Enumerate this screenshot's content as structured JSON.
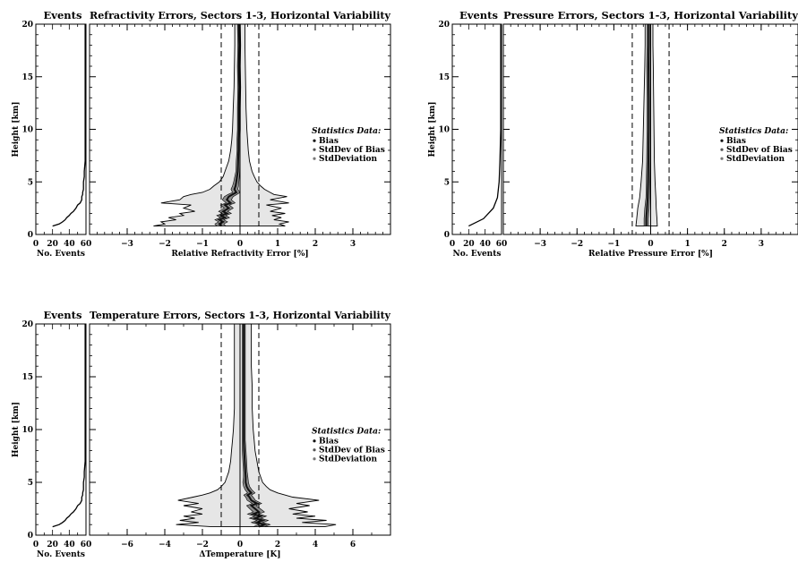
{
  "chart_data": [
    {
      "id": "refractivity",
      "type": "area",
      "title": "Refractivity Errors, Sectors 1-3, Horizontal Variability",
      "events_title": "Events",
      "ylabel": "Height [km]",
      "xlabel": "Relative Refractivity Error [%]",
      "events_xlabel": "No. Events",
      "xlim": [
        -4,
        4
      ],
      "ylim": [
        0,
        20
      ],
      "events_xlim": [
        0,
        60
      ],
      "xticks": [
        -3,
        -2,
        -1,
        0,
        1,
        2,
        3
      ],
      "yticks": [
        0,
        5,
        10,
        15,
        20
      ],
      "events_ticks": [
        0,
        20,
        40,
        60
      ],
      "dashed_lines_x": [
        -0.5,
        0.5
      ],
      "legend": {
        "title": "Statistics Data:",
        "items": [
          "Bias",
          "StdDev of Bias",
          "StdDeviation"
        ],
        "placement": "right"
      },
      "height": [
        0.8,
        1.0,
        1.2,
        1.4,
        1.6,
        1.8,
        2.0,
        2.2,
        2.5,
        2.8,
        3.0,
        3.3,
        3.6,
        3.8,
        4.0,
        4.3,
        4.6,
        5.0,
        5.5,
        6.0,
        7.0,
        8.0,
        9.0,
        10.0,
        12.0,
        14.0,
        16.0,
        18.0,
        20.0
      ],
      "bias": [
        -0.5,
        -0.55,
        -0.45,
        -0.55,
        -0.4,
        -0.5,
        -0.35,
        -0.45,
        -0.3,
        -0.4,
        -0.25,
        -0.35,
        -0.3,
        -0.2,
        -0.1,
        -0.15,
        -0.12,
        -0.1,
        -0.08,
        -0.06,
        -0.05,
        -0.04,
        -0.04,
        -0.03,
        -0.03,
        -0.02,
        -0.03,
        -0.02,
        -0.03
      ],
      "stddev_of_bias": [
        0.12,
        0.12,
        0.12,
        0.12,
        0.12,
        0.12,
        0.12,
        0.12,
        0.12,
        0.12,
        0.12,
        0.12,
        0.12,
        0.12,
        0.1,
        0.09,
        0.08,
        0.07,
        0.06,
        0.05,
        0.05,
        0.04,
        0.04,
        0.04,
        0.04,
        0.04,
        0.04,
        0.04,
        0.04
      ],
      "stddev_left": [
        -2.3,
        -2.0,
        -2.1,
        -1.7,
        -1.9,
        -1.5,
        -1.6,
        -1.2,
        -1.5,
        -1.3,
        -2.1,
        -1.6,
        -1.5,
        -1.3,
        -1.0,
        -0.8,
        -0.7,
        -0.55,
        -0.45,
        -0.4,
        -0.3,
        -0.25,
        -0.22,
        -0.2,
        -0.18,
        -0.16,
        -0.15,
        -0.14,
        -0.14
      ],
      "stddev_right": [
        1.2,
        1.05,
        1.3,
        0.9,
        1.1,
        0.85,
        1.2,
        0.8,
        1.1,
        0.7,
        1.3,
        0.8,
        1.25,
        0.9,
        0.8,
        0.65,
        0.55,
        0.45,
        0.38,
        0.32,
        0.25,
        0.22,
        0.2,
        0.18,
        0.16,
        0.15,
        0.14,
        0.13,
        0.13
      ],
      "events": [
        20,
        28,
        32,
        35,
        37,
        40,
        42,
        45,
        48,
        50,
        53,
        55,
        55,
        56,
        56,
        57,
        57,
        57,
        58,
        58,
        59,
        59,
        59,
        59,
        59,
        59,
        59,
        59,
        59
      ]
    },
    {
      "id": "pressure",
      "type": "area",
      "title": "Pressure Errors, Sectors 1-3, Horizontal Variability",
      "events_title": "Events",
      "ylabel": "Height [km]",
      "xlabel": "Relative Pressure Error [%]",
      "events_xlabel": "No. Events",
      "xlim": [
        -4,
        4
      ],
      "ylim": [
        0,
        20
      ],
      "events_xlim": [
        0,
        60
      ],
      "xticks": [
        -3,
        -2,
        -1,
        0,
        1,
        2,
        3
      ],
      "yticks": [
        0,
        5,
        10,
        15,
        20
      ],
      "events_ticks": [
        0,
        20,
        40,
        60
      ],
      "dashed_lines_x": [
        -0.5,
        0.5
      ],
      "legend": {
        "title": "Statistics Data:",
        "items": [
          "Bias",
          "StdDev of Bias",
          "StdDeviation"
        ],
        "placement": "right"
      },
      "height": [
        0.8,
        1.5,
        2.5,
        3.5,
        5.0,
        7.0,
        10.0,
        13.0,
        16.0,
        18.0,
        20.0
      ],
      "bias": [
        -0.12,
        -0.12,
        -0.1,
        -0.08,
        -0.07,
        -0.06,
        -0.05,
        -0.05,
        -0.06,
        -0.05,
        -0.05
      ],
      "stddev_of_bias": [
        0.06,
        0.06,
        0.06,
        0.05,
        0.05,
        0.05,
        0.05,
        0.05,
        0.05,
        0.05,
        0.05
      ],
      "stddev_left": [
        -0.4,
        -0.38,
        -0.35,
        -0.3,
        -0.26,
        -0.22,
        -0.2,
        -0.18,
        -0.16,
        -0.15,
        -0.15
      ],
      "stddev_right": [
        0.18,
        0.17,
        0.15,
        0.14,
        0.12,
        0.1,
        0.09,
        0.08,
        0.07,
        0.06,
        0.06
      ],
      "events": [
        20,
        38,
        50,
        55,
        57,
        58,
        59,
        59,
        59,
        59,
        59
      ]
    },
    {
      "id": "temperature",
      "type": "area",
      "title": "Temperature Errors, Sectors 1-3, Horizontal Variability",
      "events_title": "Events",
      "ylabel": "Height [km]",
      "xlabel": "ΔTemperature [K]",
      "events_xlabel": "No. Events",
      "xlim": [
        -8,
        8
      ],
      "ylim": [
        0,
        20
      ],
      "events_xlim": [
        0,
        60
      ],
      "xticks": [
        -6,
        -4,
        -2,
        0,
        2,
        4,
        6
      ],
      "yticks": [
        0,
        5,
        10,
        15,
        20
      ],
      "events_ticks": [
        0,
        20,
        40,
        60
      ],
      "dashed_lines_x": [
        -1,
        1
      ],
      "legend": {
        "title": "Statistics Data:",
        "items": [
          "Bias",
          "StdDev of Bias",
          "StdDeviation"
        ],
        "placement": "right"
      },
      "height": [
        0.8,
        1.0,
        1.2,
        1.4,
        1.6,
        1.8,
        2.0,
        2.2,
        2.5,
        2.8,
        3.0,
        3.3,
        3.6,
        3.8,
        4.0,
        4.3,
        4.6,
        5.0,
        5.5,
        6.0,
        7.0,
        8.0,
        9.0,
        10.0,
        12.0,
        14.0,
        16.0,
        18.0,
        20.0
      ],
      "bias": [
        1.0,
        1.3,
        0.9,
        1.2,
        0.8,
        1.1,
        0.7,
        1.0,
        0.8,
        0.6,
        0.9,
        0.6,
        0.5,
        0.4,
        0.6,
        0.45,
        0.35,
        0.3,
        0.3,
        0.28,
        0.25,
        0.22,
        0.2,
        0.2,
        0.2,
        0.2,
        0.2,
        0.2,
        0.2
      ],
      "stddev_of_bias": [
        0.3,
        0.3,
        0.3,
        0.3,
        0.3,
        0.3,
        0.3,
        0.3,
        0.28,
        0.25,
        0.25,
        0.22,
        0.2,
        0.2,
        0.2,
        0.18,
        0.16,
        0.15,
        0.12,
        0.1,
        0.1,
        0.1,
        0.08,
        0.08,
        0.08,
        0.08,
        0.08,
        0.08,
        0.08
      ],
      "stddev_left": [
        -1.5,
        -3.4,
        -2.2,
        -3.2,
        -2.4,
        -3.0,
        -2.0,
        -2.6,
        -2.0,
        -3.0,
        -2.2,
        -3.3,
        -2.5,
        -2.0,
        -1.6,
        -1.2,
        -1.0,
        -0.8,
        -0.7,
        -0.6,
        -0.5,
        -0.45,
        -0.4,
        -0.35,
        -0.3,
        -0.3,
        -0.3,
        -0.3,
        -0.3
      ],
      "stddev_right": [
        4.5,
        5.1,
        3.3,
        4.6,
        3.0,
        4.0,
        2.8,
        3.6,
        2.6,
        3.7,
        3.0,
        4.2,
        2.8,
        2.4,
        2.0,
        1.6,
        1.4,
        1.2,
        1.1,
        1.0,
        0.9,
        0.8,
        0.75,
        0.7,
        0.65,
        0.65,
        0.6,
        0.6,
        0.6
      ],
      "events": [
        20,
        28,
        32,
        35,
        37,
        40,
        42,
        45,
        48,
        50,
        53,
        55,
        55,
        56,
        56,
        57,
        57,
        57,
        58,
        58,
        59,
        59,
        59,
        59,
        59,
        59,
        59,
        59,
        59
      ]
    }
  ]
}
